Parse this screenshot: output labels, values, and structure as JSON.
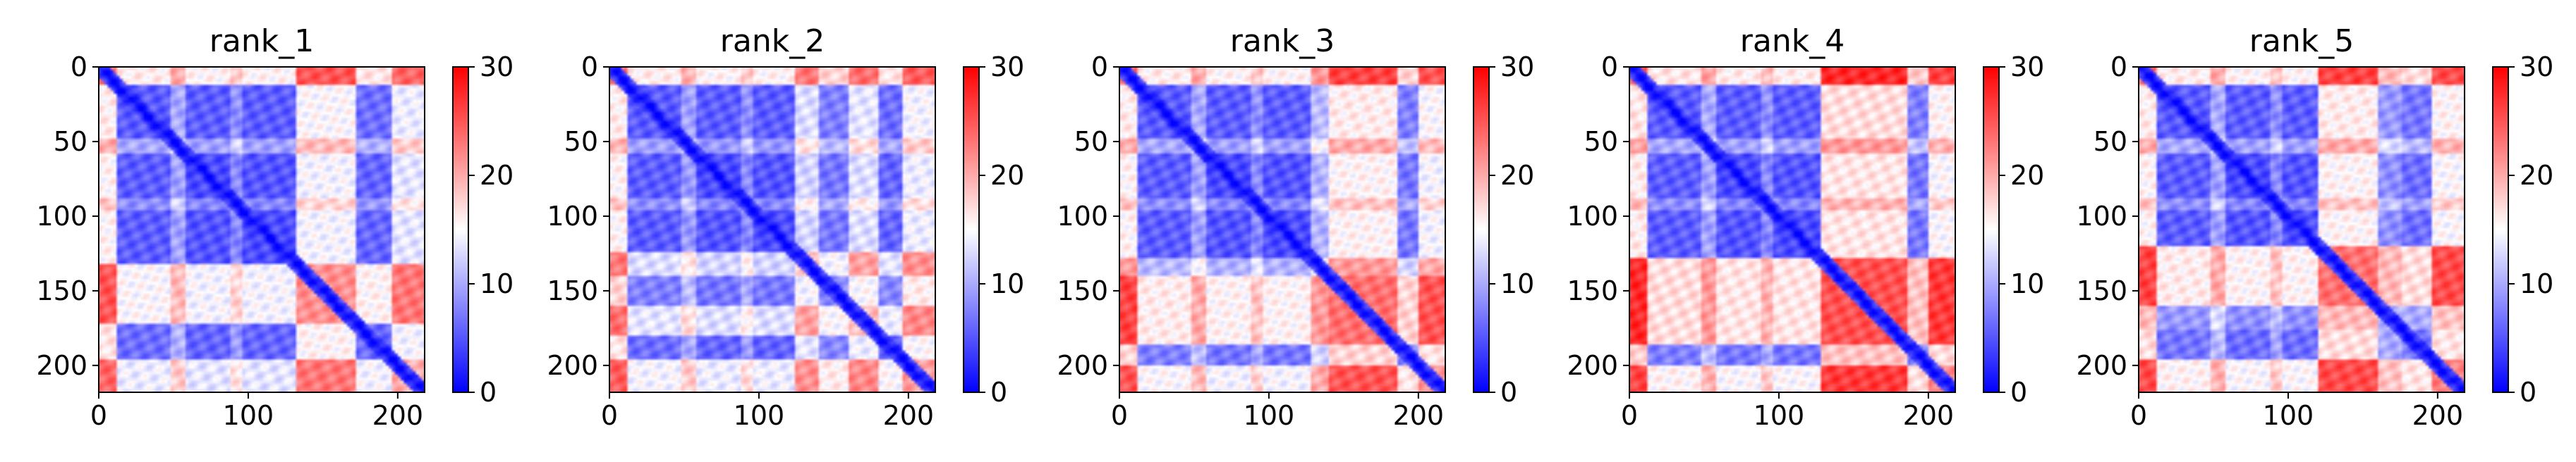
{
  "colors": {
    "low": "#0000ff",
    "mid": "#ffffff",
    "high": "#ff0000"
  },
  "chart_data": [
    {
      "type": "heatmap",
      "title": "rank_1",
      "xticks": [
        0,
        100,
        200
      ],
      "yticks": [
        0,
        50,
        100,
        150,
        200
      ],
      "xlim": [
        0,
        218
      ],
      "ylim": [
        0,
        218
      ],
      "colorbar": {
        "ticks": [
          0,
          10,
          20,
          30
        ],
        "range": [
          0,
          30
        ],
        "colormap": "bwr"
      },
      "grid": false,
      "blocks": [
        {
          "range": [
            0,
            12
          ],
          "level": 26
        },
        {
          "range": [
            12,
            48
          ],
          "level": 6
        },
        {
          "range": [
            48,
            58
          ],
          "level": 14
        },
        {
          "range": [
            58,
            88
          ],
          "level": 5
        },
        {
          "range": [
            88,
            96
          ],
          "level": 11
        },
        {
          "range": [
            96,
            132
          ],
          "level": 5
        },
        {
          "range": [
            132,
            172
          ],
          "level": 24
        },
        {
          "range": [
            172,
            196
          ],
          "level": 7
        },
        {
          "range": [
            196,
            218
          ],
          "level": 22
        }
      ]
    },
    {
      "type": "heatmap",
      "title": "rank_2",
      "xticks": [
        0,
        100,
        200
      ],
      "yticks": [
        0,
        50,
        100,
        150,
        200
      ],
      "xlim": [
        0,
        218
      ],
      "ylim": [
        0,
        218
      ],
      "colorbar": {
        "ticks": [
          0,
          10,
          20,
          30
        ],
        "range": [
          0,
          30
        ],
        "colormap": "bwr"
      },
      "grid": false,
      "blocks": [
        {
          "range": [
            0,
            12
          ],
          "level": 26
        },
        {
          "range": [
            12,
            48
          ],
          "level": 6
        },
        {
          "range": [
            48,
            58
          ],
          "level": 13
        },
        {
          "range": [
            58,
            88
          ],
          "level": 5
        },
        {
          "range": [
            88,
            96
          ],
          "level": 11
        },
        {
          "range": [
            96,
            124
          ],
          "level": 5
        },
        {
          "range": [
            124,
            140
          ],
          "level": 20
        },
        {
          "range": [
            140,
            160
          ],
          "level": 9
        },
        {
          "range": [
            160,
            180
          ],
          "level": 21
        },
        {
          "range": [
            180,
            196
          ],
          "level": 7
        },
        {
          "range": [
            196,
            218
          ],
          "level": 23
        }
      ]
    },
    {
      "type": "heatmap",
      "title": "rank_3",
      "xticks": [
        0,
        100,
        200
      ],
      "yticks": [
        0,
        50,
        100,
        150,
        200
      ],
      "xlim": [
        0,
        218
      ],
      "ylim": [
        0,
        218
      ],
      "colorbar": {
        "ticks": [
          0,
          10,
          20,
          30
        ],
        "range": [
          0,
          30
        ],
        "colormap": "bwr"
      },
      "grid": false,
      "blocks": [
        {
          "range": [
            0,
            12
          ],
          "level": 26
        },
        {
          "range": [
            12,
            48
          ],
          "level": 6
        },
        {
          "range": [
            48,
            58
          ],
          "level": 14
        },
        {
          "range": [
            58,
            88
          ],
          "level": 5
        },
        {
          "range": [
            88,
            96
          ],
          "level": 11
        },
        {
          "range": [
            96,
            128
          ],
          "level": 5
        },
        {
          "range": [
            128,
            140
          ],
          "level": 16
        },
        {
          "range": [
            140,
            186
          ],
          "level": 26
        },
        {
          "range": [
            186,
            200
          ],
          "level": 9
        },
        {
          "range": [
            200,
            218
          ],
          "level": 24
        }
      ]
    },
    {
      "type": "heatmap",
      "title": "rank_4",
      "xticks": [
        0,
        100,
        200
      ],
      "yticks": [
        0,
        50,
        100,
        150,
        200
      ],
      "xlim": [
        0,
        218
      ],
      "ylim": [
        0,
        218
      ],
      "colorbar": {
        "ticks": [
          0,
          10,
          20,
          30
        ],
        "range": [
          0,
          30
        ],
        "colormap": "bwr"
      },
      "grid": false,
      "blocks": [
        {
          "range": [
            0,
            12
          ],
          "level": 27
        },
        {
          "range": [
            12,
            48
          ],
          "level": 6
        },
        {
          "range": [
            48,
            58
          ],
          "level": 14
        },
        {
          "range": [
            58,
            88
          ],
          "level": 5
        },
        {
          "range": [
            88,
            96
          ],
          "level": 11
        },
        {
          "range": [
            96,
            128
          ],
          "level": 5
        },
        {
          "range": [
            128,
            186
          ],
          "level": 28
        },
        {
          "range": [
            186,
            200
          ],
          "level": 9
        },
        {
          "range": [
            200,
            218
          ],
          "level": 25
        }
      ]
    },
    {
      "type": "heatmap",
      "title": "rank_5",
      "xticks": [
        0,
        100,
        200
      ],
      "yticks": [
        0,
        50,
        100,
        150,
        200
      ],
      "xlim": [
        0,
        218
      ],
      "ylim": [
        0,
        218
      ],
      "colorbar": {
        "ticks": [
          0,
          10,
          20,
          30
        ],
        "range": [
          0,
          30
        ],
        "colormap": "bwr"
      },
      "grid": false,
      "blocks": [
        {
          "range": [
            0,
            12
          ],
          "level": 26
        },
        {
          "range": [
            12,
            48
          ],
          "level": 6
        },
        {
          "range": [
            48,
            58
          ],
          "level": 14
        },
        {
          "range": [
            58,
            88
          ],
          "level": 5
        },
        {
          "range": [
            88,
            96
          ],
          "level": 11
        },
        {
          "range": [
            96,
            120
          ],
          "level": 5
        },
        {
          "range": [
            120,
            160
          ],
          "level": 26
        },
        {
          "range": [
            160,
            176
          ],
          "level": 12
        },
        {
          "range": [
            176,
            196
          ],
          "level": 8
        },
        {
          "range": [
            196,
            218
          ],
          "level": 25
        }
      ]
    }
  ]
}
